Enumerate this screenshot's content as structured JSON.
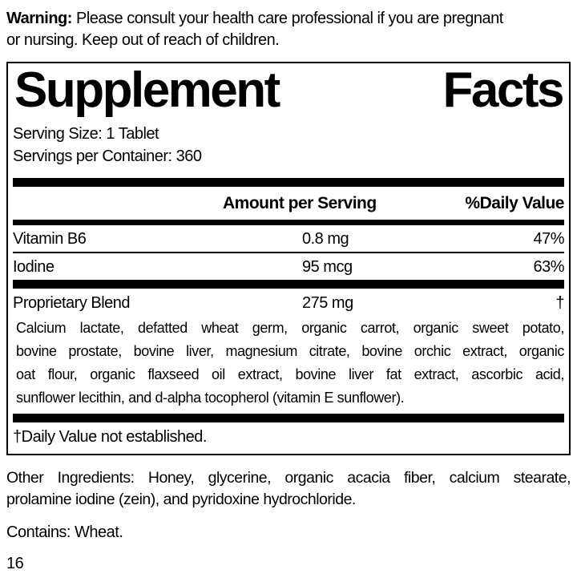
{
  "colors": {
    "ink": "#000000",
    "paper": "#ffffff"
  },
  "warning": {
    "label": "Warning:",
    "text": "Please consult your health care professional if you are pregnant\nor nursing. Keep out of reach of children."
  },
  "supplement_facts": {
    "title_words": [
      "Supplement",
      "Facts"
    ],
    "serving_size": "Serving Size: 1 Tablet",
    "servings_per_container": "Servings per Container: 360",
    "header": {
      "amount": "Amount per Serving",
      "daily_value": "%Daily Value"
    },
    "rows": [
      {
        "name": "Vitamin B6",
        "amount": "0.8 mg",
        "daily_value": "47%"
      },
      {
        "name": "Iodine",
        "amount": "95 mcg",
        "daily_value": "63%"
      },
      {
        "name": "Proprietary Blend",
        "amount": "275 mg",
        "daily_value": "†"
      }
    ],
    "proprietary_blend_ingredients": "Calcium lactate, defatted wheat germ, organic carrot, organic sweet potato,\nbovine prostate, bovine liver, magnesium citrate, bovine orchic extract, organic\noat flour, organic flaxseed oil extract, bovine liver fat extract, ascorbic acid,\nsunflower lecithin, and d-alpha tocopherol (vitamin E sunflower).",
    "footnote": "†Daily Value not established."
  },
  "other_ingredients": "Other Ingredients: Honey, glycerine, organic acacia fiber, calcium stearate,\nprolamine iodine (zein), and pyridoxine hydrochloride.",
  "contains": "Contains: Wheat.",
  "page_number": "16"
}
